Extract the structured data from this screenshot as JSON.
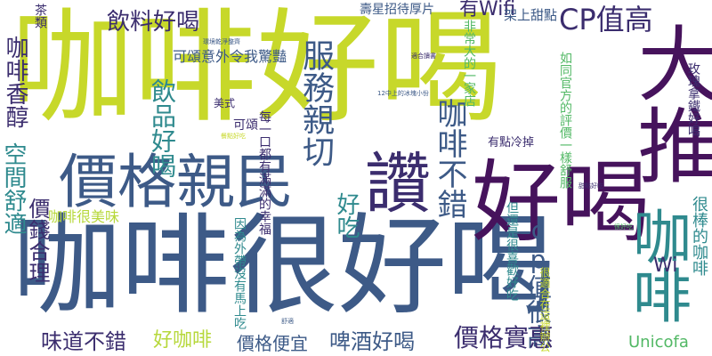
{
  "colors": {
    "background": "#ffffff",
    "lime": "#c7d82a",
    "slate": "#3d5a87",
    "purple": "#46135c",
    "teal": "#2f8a8e",
    "green": "#52b865",
    "deep": "#3b2d6e",
    "yellow_green": "#b7d83c"
  },
  "words": [
    {
      "text": "咖啡好喝",
      "color": "#c7d82a"
    },
    {
      "text": "大推",
      "color": "#46135c"
    },
    {
      "text": "咖啡很好喝",
      "color": "#3d5a87"
    },
    {
      "text": "價格親民",
      "color": "#3d5a87"
    },
    {
      "text": "好喝",
      "color": "#46135c"
    },
    {
      "text": "讚",
      "color": "#3b2d6e"
    },
    {
      "text": "咖啡",
      "color": "#2f8a8e"
    },
    {
      "text": "CP值高",
      "color": "#3b2d6e"
    },
    {
      "text": "服務親切",
      "color": "#3d5a87"
    },
    {
      "text": "咖啡香醇",
      "color": "#3b2d6e"
    },
    {
      "text": "飲品好喝",
      "color": "#2f8a8e"
    },
    {
      "text": "咖啡不錯",
      "color": "#3d5a87"
    },
    {
      "text": "空間舒適",
      "color": "#2f8a8e"
    },
    {
      "text": "價錢合理",
      "color": "#3b2d6e"
    },
    {
      "text": "飲料好喝",
      "color": "#3b2d6e"
    },
    {
      "text": "cp值很高",
      "color": "#3d5a87"
    },
    {
      "text": "價格實惠",
      "color": "#3b2d6e"
    },
    {
      "text": "啤酒好喝",
      "color": "#3d5a87"
    },
    {
      "text": "味道不錯",
      "color": "#3b2d6e"
    },
    {
      "text": "好咖啡",
      "color": "#b7d83c"
    },
    {
      "text": "價格便宜",
      "color": "#3d5a87"
    },
    {
      "text": "咖啡很美味",
      "color": "#b7d83c"
    },
    {
      "text": "好吃",
      "color": "#2f8a8e"
    },
    {
      "text": "有Wifi",
      "color": "#3b2d6e"
    },
    {
      "text": "Wi",
      "color": "#3b2d6e"
    },
    {
      "text": "Unicofa",
      "color": "#52b865"
    },
    {
      "text": "很棒的咖啡",
      "color": "#2f8a8e"
    },
    {
      "text": "玫瑰拿鐵好喝",
      "color": "#3b2d6e"
    },
    {
      "text": "非常大的一家店",
      "color": "#52b865"
    },
    {
      "text": "每一口都有滿滿的幸福",
      "color": "#3b2d6e"
    },
    {
      "text": "壽星招待厚片",
      "color": "#3d5a87"
    },
    {
      "text": "架上甜點",
      "color": "#3d5a87"
    },
    {
      "text": "可頌意外令我驚豔",
      "color": "#3d5a87"
    },
    {
      "text": "茶類",
      "color": "#3b2d6e"
    },
    {
      "text": "有點冷掉",
      "color": "#3b2d6e"
    },
    {
      "text": "美式",
      "color": "#3b2d6e"
    },
    {
      "text": "可頌",
      "color": "#3b2d6e"
    },
    {
      "text": "因為外帶沒有馬上吃",
      "color": "#2f8a8e"
    },
    {
      "text": "但還是很喜歡好吃",
      "color": "#2f8a8e"
    },
    {
      "text": "如同官方的評價一樣舒服",
      "color": "#52b865"
    },
    {
      "text": "很適合在這裡辦公",
      "color": "#c7d82a"
    },
    {
      "text": "12中上的冰塊小份",
      "color": "#3d5a87"
    },
    {
      "text": "環境乾淨整齊",
      "color": "#3d5a87"
    },
    {
      "text": "很好吃",
      "color": "#52b865"
    },
    {
      "text": "適合讀書",
      "color": "#3b2d6e"
    },
    {
      "text": "餐點好吃",
      "color": "#c7d82a"
    },
    {
      "text": "甜點好吃",
      "color": "#3b2d6e"
    },
    {
      "text": "舒適",
      "color": "#3d5a87"
    }
  ]
}
